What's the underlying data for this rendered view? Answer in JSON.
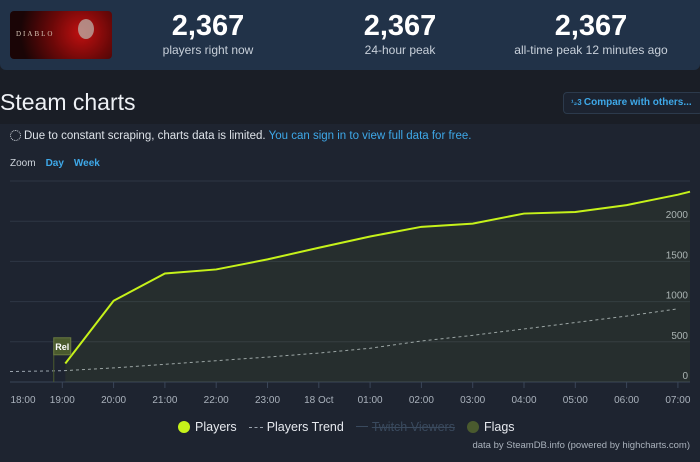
{
  "game": {
    "name": "Diablo IV",
    "logo_text": "DIABLO IV"
  },
  "stats": [
    {
      "value": "2,367",
      "label": "players right now"
    },
    {
      "value": "2,367",
      "label": "24-hour peak"
    },
    {
      "value": "2,367",
      "label": "all-time peak 12 minutes ago"
    }
  ],
  "section": {
    "title": "Steam charts",
    "compare_label": "Compare with others...",
    "compare_icon": "numbered-list-icon"
  },
  "notice": {
    "text": "Due to constant scraping, charts data is limited.",
    "link": "You can sign in to view full data for free."
  },
  "zoom": {
    "label": "Zoom",
    "options": [
      "Day",
      "Week"
    ]
  },
  "chart_data": {
    "type": "line",
    "x_ticks": [
      "18:00",
      "19:00",
      "20:00",
      "21:00",
      "22:00",
      "23:00",
      "18 Oct",
      "01:00",
      "02:00",
      "03:00",
      "04:00",
      "05:00",
      "06:00",
      "07:00"
    ],
    "y_ticks": [
      "0",
      "500",
      "1000",
      "1500",
      "2000"
    ],
    "ylim": [
      0,
      2500
    ],
    "grid": true,
    "series": [
      {
        "name": "Players",
        "color": "#c6f21a",
        "x": [
          "19:00",
          "20:00",
          "21:00",
          "22:00",
          "23:00",
          "18 Oct",
          "01:00",
          "02:00",
          "03:00",
          "04:00",
          "05:00",
          "06:00",
          "07:00"
        ],
        "values": [
          230,
          1010,
          1350,
          1400,
          1525,
          1670,
          1810,
          1930,
          1970,
          2095,
          2115,
          2200,
          2330
        ]
      },
      {
        "name": "Players Trend",
        "color": "#9aa3ad",
        "dashed": true,
        "x": [
          "18:00",
          "19:00",
          "20:00",
          "21:00",
          "22:00",
          "23:00",
          "18 Oct",
          "01:00",
          "02:00",
          "03:00",
          "04:00",
          "05:00",
          "06:00",
          "07:00"
        ],
        "values": [
          130,
          140,
          175,
          220,
          265,
          310,
          360,
          420,
          510,
          580,
          660,
          740,
          820,
          910
        ]
      },
      {
        "name": "Twitch Viewers",
        "hidden": true
      },
      {
        "name": "Flags",
        "color": "#4a5a2e"
      }
    ],
    "flags": [
      {
        "label": "Rel",
        "x": "18:50"
      }
    ],
    "legend": "bottom-center",
    "credit": "data by SteamDB.info (powered by highcharts.com)"
  }
}
